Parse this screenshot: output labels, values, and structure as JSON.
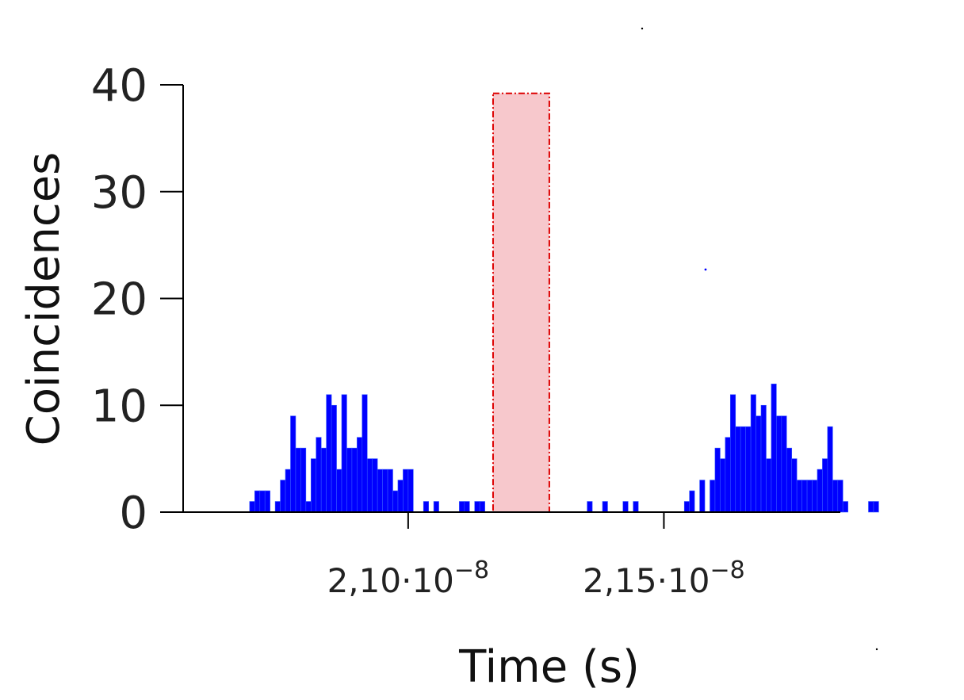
{
  "chart_data": {
    "type": "bar",
    "xlabel": "Time (s)",
    "ylabel": "Coincidences",
    "xlim": [
      2.056e-08,
      2.1845e-08
    ],
    "ylim": [
      0,
      40
    ],
    "y_ticks": [
      0,
      10,
      20,
      30,
      40
    ],
    "y_tick_labels": [
      "0",
      "10",
      "20",
      "30",
      "40"
    ],
    "x_ticks": [
      {
        "value": 2.1e-08,
        "mantissa": "2,10·10",
        "exponent": "−8"
      },
      {
        "value": 2.15e-08,
        "mantissa": "2,15·10",
        "exponent": "−8"
      }
    ],
    "grid": false,
    "legend": "none",
    "bar_color": "#0000ff",
    "bar_edge_color": "#3355ff",
    "bin_width": 1e-11,
    "bin_start": 2.069e-08,
    "counts": [
      1,
      2,
      2,
      2,
      0,
      1,
      3,
      4,
      9,
      6,
      6,
      1,
      5,
      7,
      6,
      11,
      10,
      4,
      11,
      6,
      6,
      7,
      11,
      5,
      5,
      4,
      4,
      4,
      2,
      3,
      4,
      4,
      0,
      0,
      1,
      0,
      1,
      0,
      0,
      0,
      0,
      1,
      1,
      0,
      1,
      1,
      0,
      0,
      0,
      0,
      0,
      0,
      0,
      0,
      0,
      0,
      0,
      0,
      0,
      0,
      0,
      0,
      0,
      0,
      0,
      0,
      1,
      0,
      0,
      1,
      0,
      0,
      0,
      1,
      0,
      1,
      0,
      0,
      0,
      0,
      0,
      0,
      0,
      0,
      0,
      1,
      2,
      0,
      3,
      0,
      3,
      6,
      5,
      7,
      11,
      8,
      8,
      8,
      11,
      9,
      10,
      5,
      12,
      9,
      9,
      6,
      5,
      3,
      3,
      3,
      3,
      4,
      5,
      8,
      3,
      3,
      1,
      0,
      0,
      0,
      0,
      1,
      1
    ],
    "highlight_region": {
      "x_start": 2.1166e-08,
      "x_end": 2.1276e-08,
      "y_top": 39.2,
      "fill": "#f7c8cc",
      "edge": "#dd0000"
    }
  }
}
